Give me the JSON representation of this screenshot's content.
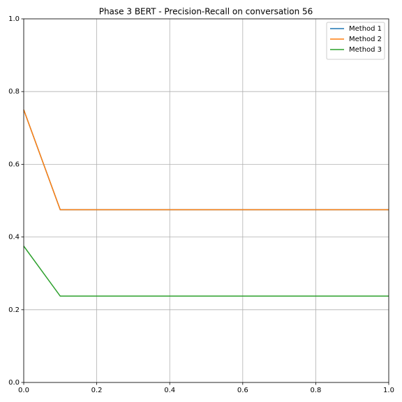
{
  "chart_data": {
    "type": "line",
    "title": "Phase 3 BERT - Precision-Recall on conversation 56",
    "x": [
      0,
      0.1,
      1
    ],
    "series": [
      {
        "name": "Method 1",
        "color": "#1f77b4",
        "values": [
          0.75,
          0.475,
          0.475
        ]
      },
      {
        "name": "Method 2",
        "color": "#ff7f0e",
        "values": [
          0.75,
          0.475,
          0.475
        ]
      },
      {
        "name": "Method 3",
        "color": "#2ca02c",
        "values": [
          0.375,
          0.2375,
          0.2375
        ]
      }
    ],
    "xlim": [
      0,
      1
    ],
    "ylim": [
      0,
      1
    ],
    "xticks": [
      {
        "value": 0,
        "label": "0.0"
      },
      0.2,
      0.4,
      0.6,
      0.8,
      {
        "value": 1,
        "label": "1.0"
      }
    ],
    "yticks": [
      {
        "value": 0,
        "label": "0.0"
      },
      0.2,
      0.4,
      0.6,
      0.8,
      {
        "value": 1,
        "label": "1.0"
      }
    ],
    "grid": true,
    "legend": "upper right"
  }
}
